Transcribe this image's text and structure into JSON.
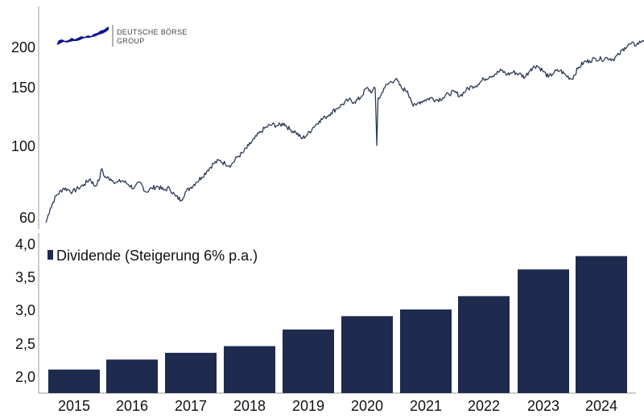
{
  "logo": {
    "line1": "DEUTSCHE BÖRSE",
    "line2": "GROUP",
    "color": "#0a1496"
  },
  "chart_data": [
    {
      "type": "line",
      "title": "",
      "xlabel": "",
      "ylabel": "",
      "scale": "log",
      "ylim": [
        57,
        230
      ],
      "xlim": [
        2014.5,
        2025.0
      ],
      "yticks": [
        "60",
        "100",
        "150",
        "200"
      ],
      "line_color": "#2c3a55",
      "series": [
        {
          "x": [
            2014.55,
            2014.62,
            2014.72,
            2014.85,
            2014.95,
            2015.0,
            2015.1,
            2015.2,
            2015.3,
            2015.38,
            2015.45,
            2015.5,
            2015.55,
            2015.65,
            2015.75,
            2015.85,
            2015.95,
            2016.05,
            2016.15,
            2016.25,
            2016.35,
            2016.45,
            2016.55,
            2016.65,
            2016.75,
            2016.85,
            2016.92,
            2017.0,
            2017.1,
            2017.2,
            2017.3,
            2017.4,
            2017.5,
            2017.6,
            2017.7,
            2017.8,
            2017.9,
            2018.0,
            2018.1,
            2018.2,
            2018.3,
            2018.4,
            2018.5,
            2018.6,
            2018.7,
            2018.8,
            2018.9,
            2019.0,
            2019.1,
            2019.2,
            2019.3,
            2019.4,
            2019.5,
            2019.6,
            2019.7,
            2019.8,
            2019.9,
            2020.0,
            2020.1,
            2020.15,
            2020.18,
            2020.2,
            2020.23,
            2020.3,
            2020.4,
            2020.5,
            2020.6,
            2020.7,
            2020.75,
            2020.8,
            2020.85,
            2020.9,
            2021.0,
            2021.1,
            2021.2,
            2021.3,
            2021.4,
            2021.5,
            2021.6,
            2021.7,
            2021.8,
            2021.9,
            2022.0,
            2022.1,
            2022.2,
            2022.3,
            2022.4,
            2022.5,
            2022.6,
            2022.7,
            2022.8,
            2022.9,
            2023.0,
            2023.1,
            2023.2,
            2023.3,
            2023.4,
            2023.5,
            2023.6,
            2023.7,
            2023.8,
            2023.9,
            2024.0,
            2024.1,
            2024.2,
            2024.3,
            2024.4,
            2024.5,
            2024.6,
            2024.7,
            2024.8,
            2024.9,
            2024.97
          ],
          "values": [
            58,
            64,
            70,
            74,
            73,
            72,
            74,
            76,
            79,
            75,
            78,
            85,
            80,
            79,
            77,
            78,
            76,
            74,
            77,
            72,
            74,
            75,
            73,
            74,
            70,
            68,
            72,
            74,
            77,
            80,
            84,
            88,
            90,
            88,
            87,
            92,
            95,
            100,
            105,
            110,
            114,
            116,
            115,
            117,
            112,
            110,
            105,
            108,
            114,
            119,
            122,
            126,
            130,
            134,
            138,
            136,
            140,
            150,
            146,
            150,
            100,
            140,
            140,
            150,
            156,
            160,
            150,
            147,
            140,
            132,
            133,
            136,
            138,
            140,
            138,
            140,
            144,
            146,
            142,
            148,
            152,
            154,
            160,
            163,
            166,
            170,
            165,
            168,
            166,
            162,
            172,
            176,
            170,
            162,
            168,
            170,
            164,
            160,
            172,
            180,
            182,
            185,
            184,
            186,
            184,
            190,
            200,
            205,
            204,
            210,
            213,
            214,
            217
          ]
        }
      ]
    },
    {
      "type": "bar",
      "title": "",
      "xlabel": "",
      "ylabel": "",
      "ylim": [
        1.8,
        4.0
      ],
      "yticks": [
        "2,0",
        "2,5",
        "3,0",
        "3,5",
        "4,0"
      ],
      "categories": [
        "2015",
        "2016",
        "2017",
        "2018",
        "2019",
        "2020",
        "2021",
        "2022",
        "2023",
        "2024"
      ],
      "series": [
        {
          "name": "Dividende (Steigerung 6% p.a.)",
          "color": "#1f2a4f",
          "values": [
            2.1,
            2.25,
            2.35,
            2.45,
            2.7,
            2.9,
            3.0,
            3.2,
            3.6,
            3.8
          ]
        }
      ],
      "legend_position": "top-left"
    }
  ]
}
